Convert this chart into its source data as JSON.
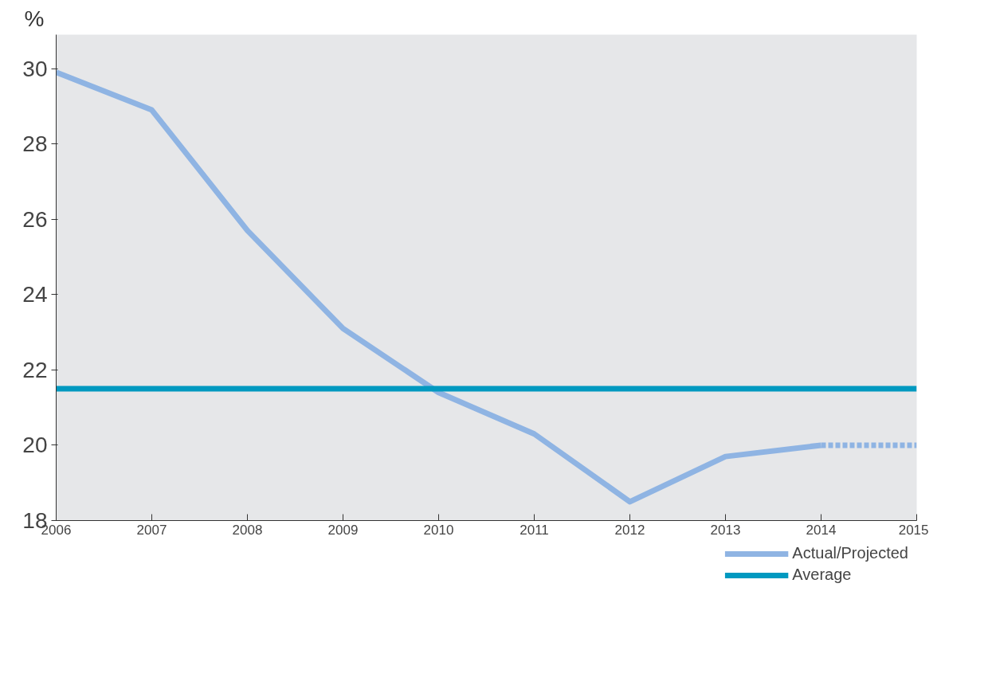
{
  "chart_data": {
    "type": "line",
    "ylabel": "%",
    "xlim": [
      2006,
      2015
    ],
    "ylim": [
      18,
      30.9
    ],
    "xticks": [
      2006,
      2007,
      2008,
      2009,
      2010,
      2011,
      2012,
      2013,
      2014,
      2015
    ],
    "yticks": [
      18,
      20,
      22,
      24,
      26,
      28,
      30
    ],
    "series": [
      {
        "name": "Actual/Projected",
        "color": "#8fb4e3",
        "line_style": "solid",
        "x": [
          2006,
          2007,
          2008,
          2009,
          2010,
          2011,
          2012,
          2013,
          2014
        ],
        "values": [
          29.9,
          28.9,
          25.7,
          23.1,
          21.4,
          20.3,
          18.5,
          19.7,
          20.0
        ]
      },
      {
        "color": "#8fb4e3",
        "line_style": "dotted",
        "x": [
          2014,
          2015
        ],
        "values": [
          20.0,
          20.0
        ]
      },
      {
        "name": "Average",
        "color": "#0099c0",
        "line_style": "solid",
        "x": [
          2006,
          2015
        ],
        "values": [
          21.5,
          21.5
        ]
      }
    ],
    "grid": false,
    "legend": "bottom right",
    "marker": "none"
  }
}
